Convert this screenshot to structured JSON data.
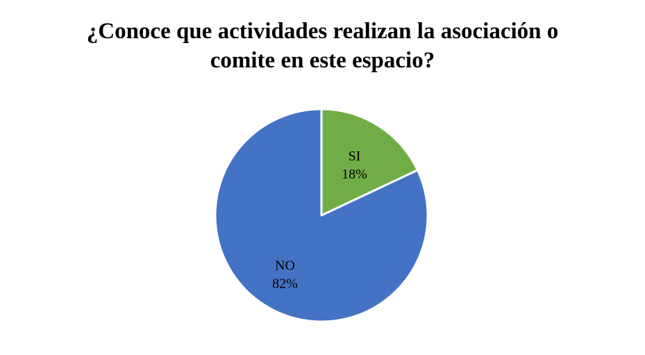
{
  "chart_data": {
    "type": "pie",
    "title_lines": [
      "¿Conoce que actividades realizan la asociación o",
      "comite en este espacio?"
    ],
    "slices": [
      {
        "label": "SI",
        "value": 18,
        "value_label": "18%",
        "color": "#70AD47"
      },
      {
        "label": "NO",
        "value": 82,
        "value_label": "82%",
        "color": "#4472C4"
      }
    ],
    "start_angle_deg": 0,
    "direction": "clockwise"
  }
}
